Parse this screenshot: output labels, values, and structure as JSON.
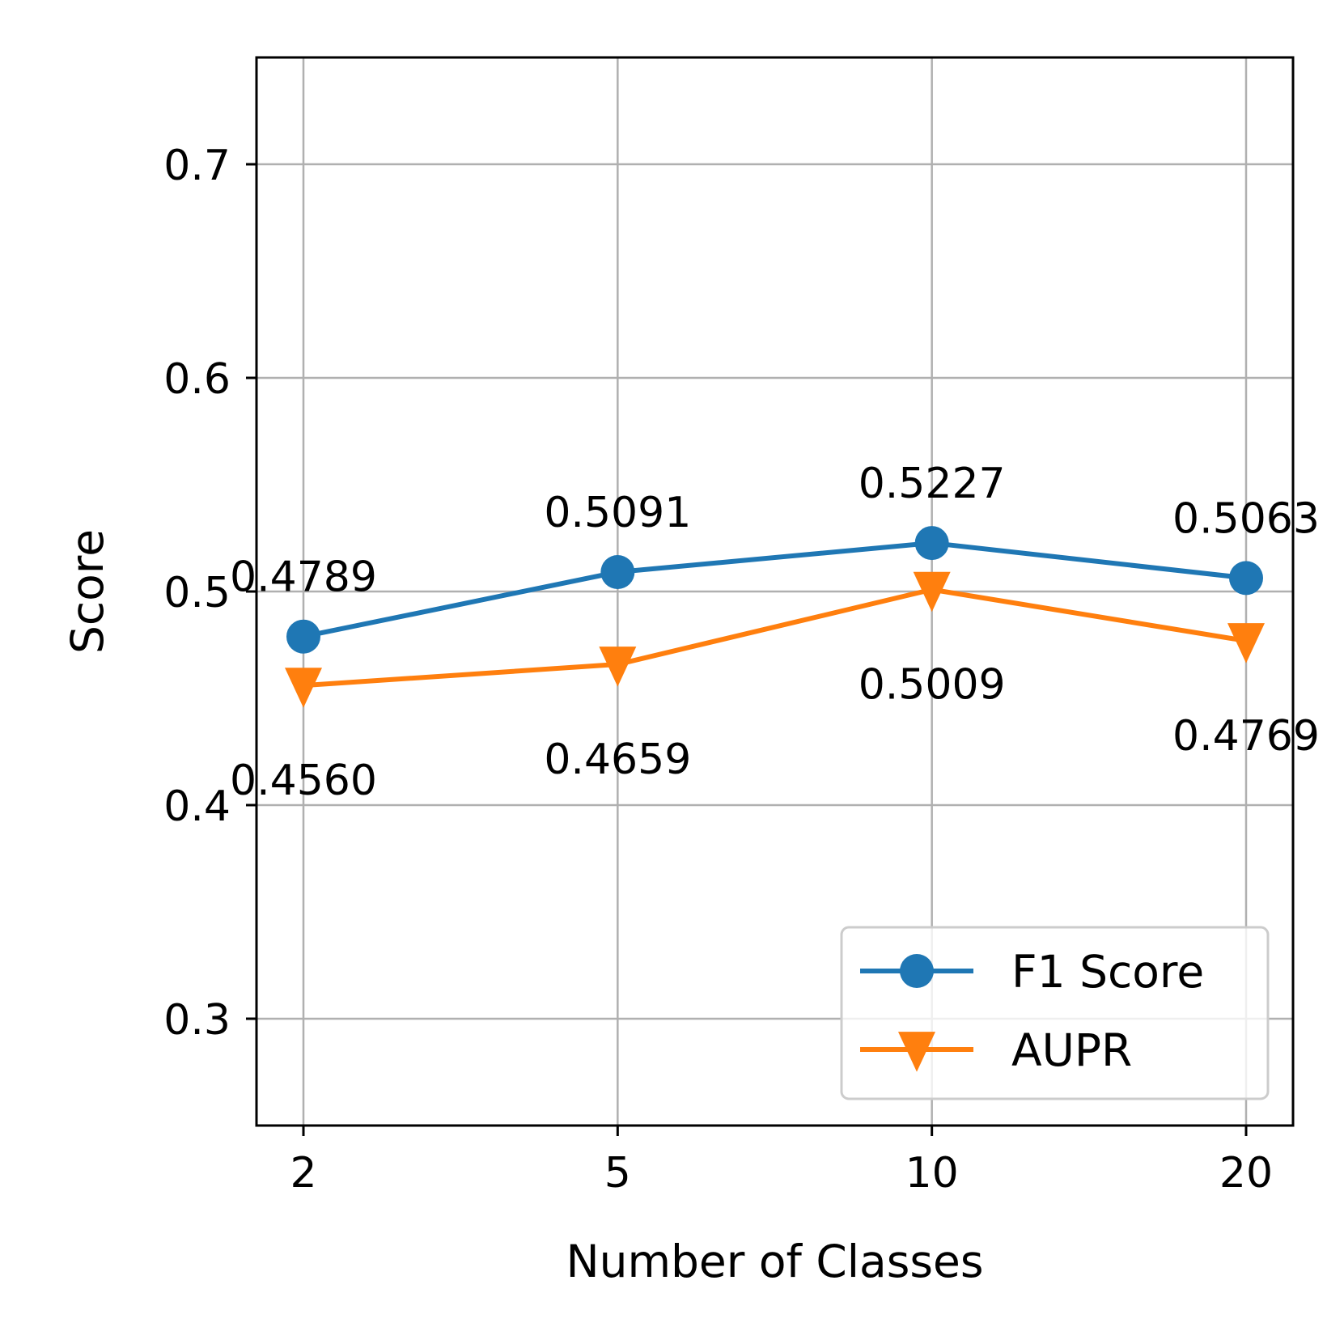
{
  "chart_data": {
    "type": "line",
    "xlabel": "Number of Classes",
    "ylabel": "Score",
    "categories": [
      "2",
      "5",
      "10",
      "20"
    ],
    "ylim": [
      0.25,
      0.75
    ],
    "yticks": [
      "0.3",
      "0.4",
      "0.5",
      "0.6",
      "0.7"
    ],
    "grid": true,
    "legend_position": "lower right",
    "series": [
      {
        "name": "F1 Score",
        "color": "#1f77b4",
        "marker": "circle",
        "values": [
          0.4789,
          0.5091,
          0.5227,
          0.5063
        ],
        "labels": [
          "0.4789",
          "0.5091",
          "0.5227",
          "0.5063"
        ],
        "label_placement": "above"
      },
      {
        "name": "AUPR",
        "color": "#ff7f0e",
        "marker": "triangle-down",
        "values": [
          0.456,
          0.4659,
          0.5009,
          0.4769
        ],
        "labels": [
          "0.4560",
          "0.4659",
          "0.5009",
          "0.4769"
        ],
        "label_placement": "below"
      }
    ]
  }
}
